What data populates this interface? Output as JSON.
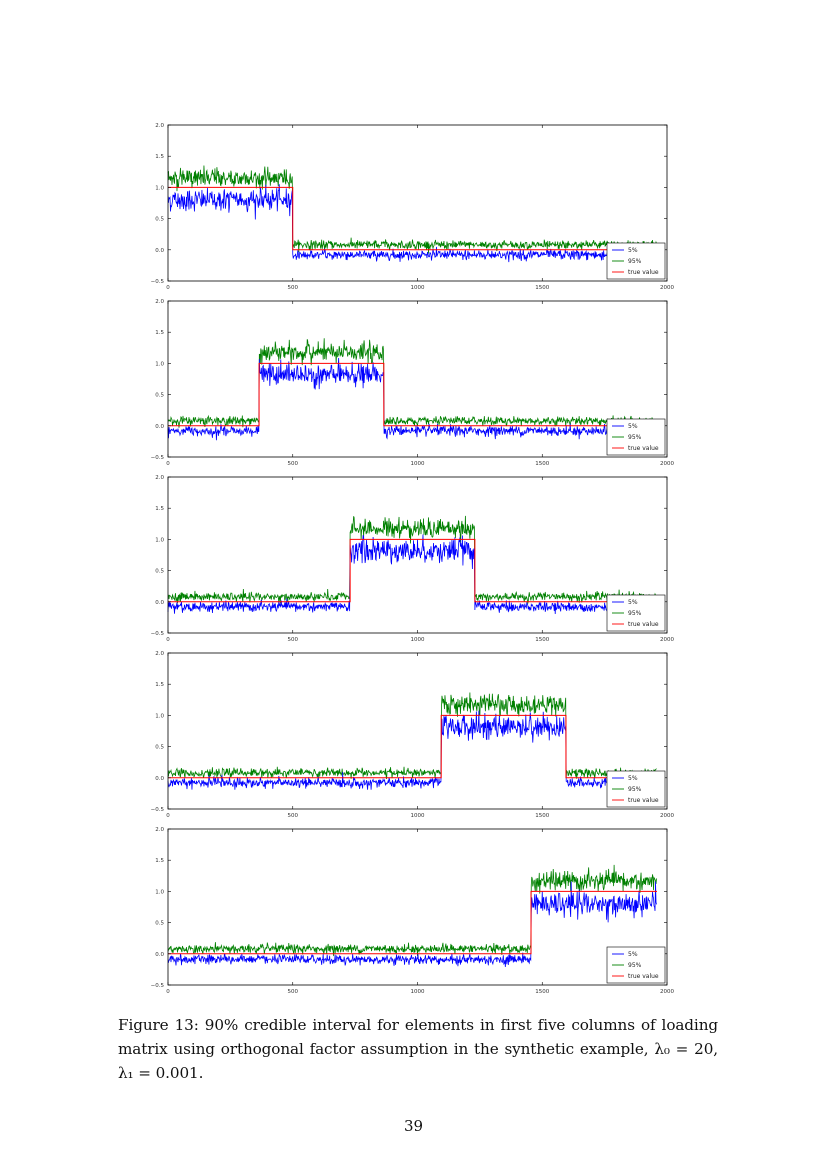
{
  "page": {
    "number": "39",
    "caption": "Figure 13: 90% credible interval for elements in first five columns of loading matrix using orthogonal factor assumption in the synthetic example, λ₀ = 20,  λ₁ = 0.001."
  },
  "colors": {
    "lower": "#0000ff",
    "upper": "#008000",
    "truth": "#ff0000",
    "axis": "#000000",
    "tick_text": "#333333"
  },
  "chart_data": [
    {
      "type": "line",
      "panel": 1,
      "title": "",
      "xlabel": "",
      "ylabel": "",
      "xlim": [
        0,
        2000
      ],
      "ylim": [
        -0.5,
        2.0
      ],
      "xticks": [
        "0",
        "500",
        "1000",
        "1500",
        "2000"
      ],
      "yticks": [
        "−0.5",
        "0.0",
        "0.5",
        "1.0",
        "1.5",
        "2.0"
      ],
      "legend": [
        "5%",
        "95%",
        "true value"
      ],
      "legend_position": "lower right",
      "grid": false,
      "n_points": 1960,
      "active_range": [
        0,
        500
      ],
      "series": [
        {
          "name": "5%",
          "active_mean": 0.8,
          "inactive_mean": -0.08,
          "active_sd": 0.09,
          "inactive_sd": 0.04
        },
        {
          "name": "95%",
          "active_mean": 1.15,
          "inactive_mean": 0.08,
          "active_sd": 0.08,
          "inactive_sd": 0.035
        },
        {
          "name": "true value",
          "active_value": 1.0,
          "inactive_value": 0.0
        }
      ]
    },
    {
      "type": "line",
      "panel": 2,
      "xlim": [
        0,
        2000
      ],
      "ylim": [
        -0.5,
        2.0
      ],
      "xticks": [
        "0",
        "500",
        "1000",
        "1500",
        "2000"
      ],
      "yticks": [
        "−0.5",
        "0.0",
        "0.5",
        "1.0",
        "1.5",
        "2.0"
      ],
      "legend": [
        "5%",
        "95%",
        "true value"
      ],
      "legend_position": "lower right",
      "n_points": 1960,
      "active_range": [
        365,
        865
      ],
      "series": [
        {
          "name": "5%",
          "active_mean": 0.82,
          "inactive_mean": -0.08,
          "active_sd": 0.09,
          "inactive_sd": 0.04
        },
        {
          "name": "95%",
          "active_mean": 1.17,
          "inactive_mean": 0.08,
          "active_sd": 0.08,
          "inactive_sd": 0.035
        },
        {
          "name": "true value",
          "active_value": 1.0,
          "inactive_value": 0.0
        }
      ]
    },
    {
      "type": "line",
      "panel": 3,
      "xlim": [
        0,
        2000
      ],
      "ylim": [
        -0.5,
        2.0
      ],
      "xticks": [
        "0",
        "500",
        "1000",
        "1500",
        "2000"
      ],
      "yticks": [
        "−0.5",
        "0.0",
        "0.5",
        "1.0",
        "1.5",
        "2.0"
      ],
      "legend": [
        "5%",
        "95%",
        "true value"
      ],
      "legend_position": "lower right",
      "n_points": 1960,
      "active_range": [
        730,
        1230
      ],
      "series": [
        {
          "name": "5%",
          "active_mean": 0.82,
          "inactive_mean": -0.08,
          "active_sd": 0.1,
          "inactive_sd": 0.04
        },
        {
          "name": "95%",
          "active_mean": 1.18,
          "inactive_mean": 0.08,
          "active_sd": 0.08,
          "inactive_sd": 0.035
        },
        {
          "name": "true value",
          "active_value": 1.0,
          "inactive_value": 0.0
        }
      ]
    },
    {
      "type": "line",
      "panel": 4,
      "xlim": [
        0,
        2000
      ],
      "ylim": [
        -0.5,
        2.0
      ],
      "xticks": [
        "0",
        "500",
        "1000",
        "1500",
        "2000"
      ],
      "yticks": [
        "−0.5",
        "0.0",
        "0.5",
        "1.0",
        "1.5",
        "2.0"
      ],
      "legend": [
        "5%",
        "95%",
        "true value"
      ],
      "legend_position": "lower right",
      "n_points": 1960,
      "active_range": [
        1095,
        1595
      ],
      "series": [
        {
          "name": "5%",
          "active_mean": 0.82,
          "inactive_mean": -0.08,
          "active_sd": 0.1,
          "inactive_sd": 0.04
        },
        {
          "name": "95%",
          "active_mean": 1.17,
          "inactive_mean": 0.08,
          "active_sd": 0.08,
          "inactive_sd": 0.035
        },
        {
          "name": "true value",
          "active_value": 1.0,
          "inactive_value": 0.0
        }
      ]
    },
    {
      "type": "line",
      "panel": 5,
      "xlim": [
        0,
        2000
      ],
      "ylim": [
        -0.5,
        2.0
      ],
      "xticks": [
        "0",
        "500",
        "1000",
        "1500",
        "2000"
      ],
      "yticks": [
        "−0.5",
        "0.0",
        "0.5",
        "1.0",
        "1.5",
        "2.0"
      ],
      "legend": [
        "5%",
        "95%",
        "true value"
      ],
      "legend_position": "lower right",
      "n_points": 1960,
      "active_range": [
        1455,
        1960
      ],
      "series": [
        {
          "name": "5%",
          "active_mean": 0.8,
          "inactive_mean": -0.09,
          "active_sd": 0.1,
          "inactive_sd": 0.04
        },
        {
          "name": "95%",
          "active_mean": 1.16,
          "inactive_mean": 0.08,
          "active_sd": 0.08,
          "inactive_sd": 0.035
        },
        {
          "name": "true value",
          "active_value": 1.0,
          "inactive_value": 0.0
        }
      ]
    }
  ]
}
